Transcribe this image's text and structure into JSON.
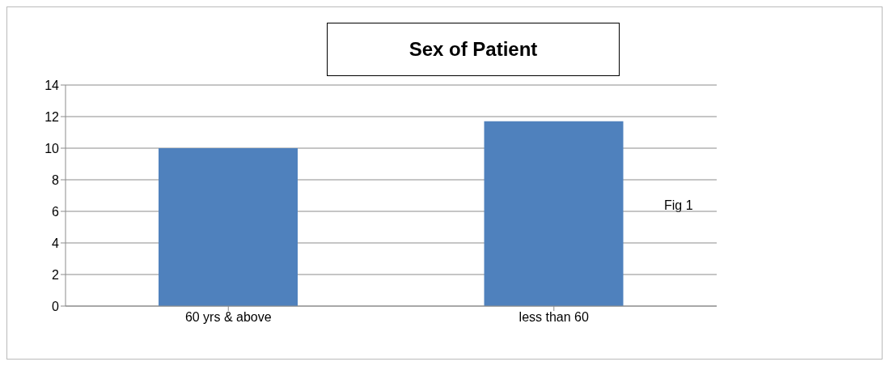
{
  "chart_data": {
    "type": "bar",
    "title": "Sex of Patient",
    "categories": [
      "60 yrs & above",
      "less than 60"
    ],
    "values": [
      10,
      11.7
    ],
    "color": "#4f81bd",
    "ylim": [
      0,
      14
    ],
    "yticks": [
      0,
      2,
      4,
      6,
      8,
      10,
      12,
      14
    ],
    "grid": "y",
    "annotations": [
      "Fig 1"
    ]
  }
}
